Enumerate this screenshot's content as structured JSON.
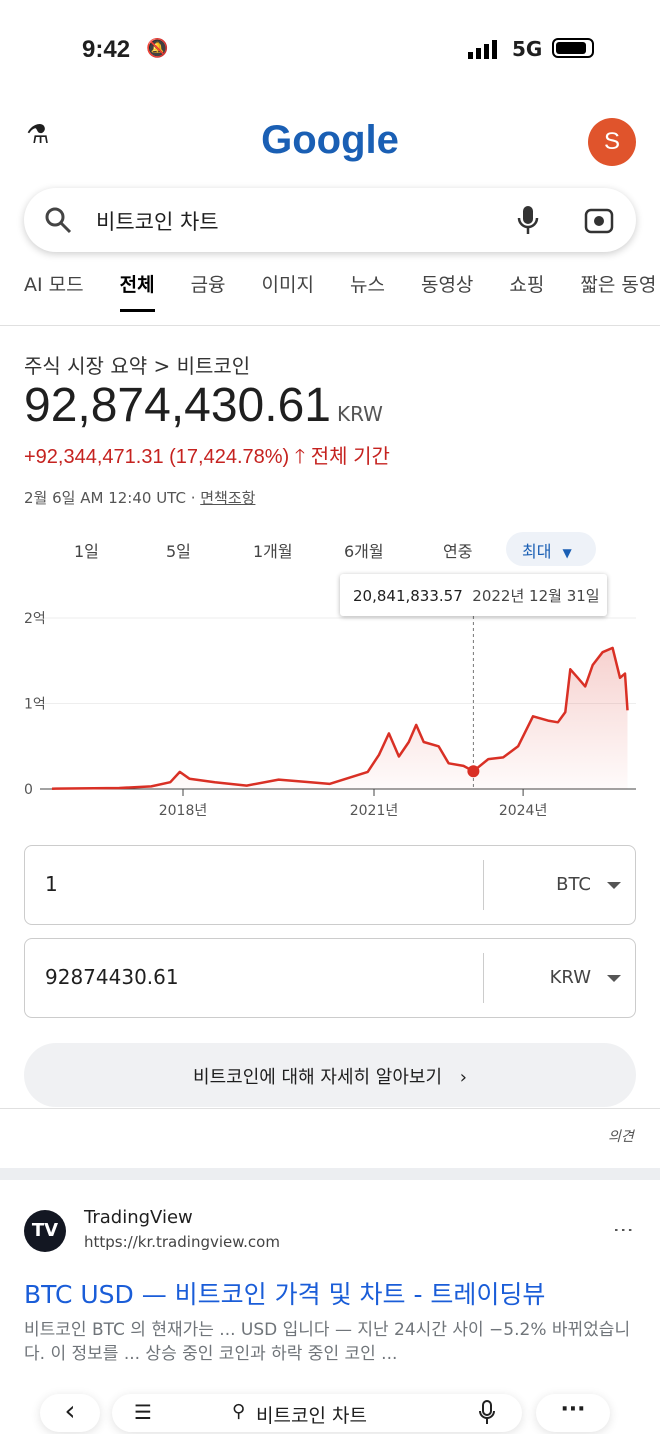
{
  "status": {
    "time": "9:42",
    "network": "5G"
  },
  "header": {
    "logo": "Google",
    "avatar_letter": "S"
  },
  "search": {
    "query": "비트코인 차트"
  },
  "tabs": [
    "AI 모드",
    "전체",
    "금융",
    "이미지",
    "뉴스",
    "동영상",
    "쇼핑",
    "짧은 동영"
  ],
  "finance": {
    "breadcrumb": "주식 시장 요약 > 비트코인",
    "price": "92,874,430.61",
    "currency": "KRW",
    "change": "+92,344,471.31 (17,424.78%)",
    "period": "전체 기간",
    "timestamp": "2월 6일 AM 12:40 UTC · ",
    "disclaimer": "면책조항",
    "accent": "#c5221f"
  },
  "ranges": [
    "1일",
    "5일",
    "1개월",
    "6개월",
    "연중",
    "최대"
  ],
  "tooltip": {
    "value": "20,841,833.57",
    "date": "2022년 12월 31일"
  },
  "chart_data": {
    "type": "area",
    "yticks": [
      "0",
      "1억",
      "2억"
    ],
    "ylim": [
      0,
      2
    ],
    "yunit": "억 KRW",
    "xticks": [
      "2018년",
      "2021년",
      "2024년"
    ],
    "line_color": "#d93025",
    "points": [
      [
        2016.0,
        0.005
      ],
      [
        2017.0,
        0.012
      ],
      [
        2017.5,
        0.03
      ],
      [
        2017.8,
        0.08
      ],
      [
        2017.95,
        0.2
      ],
      [
        2018.1,
        0.12
      ],
      [
        2018.5,
        0.08
      ],
      [
        2019.0,
        0.04
      ],
      [
        2019.5,
        0.11
      ],
      [
        2020.0,
        0.08
      ],
      [
        2020.3,
        0.06
      ],
      [
        2020.9,
        0.2
      ],
      [
        2021.1,
        0.4
      ],
      [
        2021.3,
        0.65
      ],
      [
        2021.5,
        0.38
      ],
      [
        2021.7,
        0.55
      ],
      [
        2021.85,
        0.75
      ],
      [
        2022.0,
        0.55
      ],
      [
        2022.3,
        0.5
      ],
      [
        2022.5,
        0.3
      ],
      [
        2022.8,
        0.27
      ],
      [
        2023.0,
        0.208
      ],
      [
        2023.3,
        0.35
      ],
      [
        2023.6,
        0.37
      ],
      [
        2023.9,
        0.5
      ],
      [
        2024.2,
        0.85
      ],
      [
        2024.5,
        0.8
      ],
      [
        2024.7,
        0.78
      ],
      [
        2024.85,
        0.9
      ],
      [
        2024.95,
        1.4
      ],
      [
        2025.1,
        1.3
      ],
      [
        2025.25,
        1.2
      ],
      [
        2025.4,
        1.45
      ],
      [
        2025.6,
        1.6
      ],
      [
        2025.8,
        1.65
      ],
      [
        2025.95,
        1.3
      ],
      [
        2026.05,
        1.35
      ],
      [
        2026.1,
        0.92
      ]
    ],
    "highlight": [
      2023.0,
      0.208
    ]
  },
  "converter": {
    "amount": "1",
    "from": "BTC",
    "result": "92874430.61",
    "to": "KRW"
  },
  "learn_more": "비트코인에 대해 자세히 알아보기",
  "feedback": "의견",
  "result": {
    "site": "TradingView",
    "url": "https://kr.tradingview.com",
    "title": "BTC USD — 비트코인 가격 및 차트 - 트레이딩뷰",
    "snippet": "비트코인 BTC 의 현재가는 ... USD 입니다 — 지난 24시간 사이 −5.2% 바뀌었습니다. 이 정보를 ... 상승 중인 코인과 하락 중인 코인 ..."
  },
  "bottom_bar": {
    "query": "비트코인 차트"
  }
}
